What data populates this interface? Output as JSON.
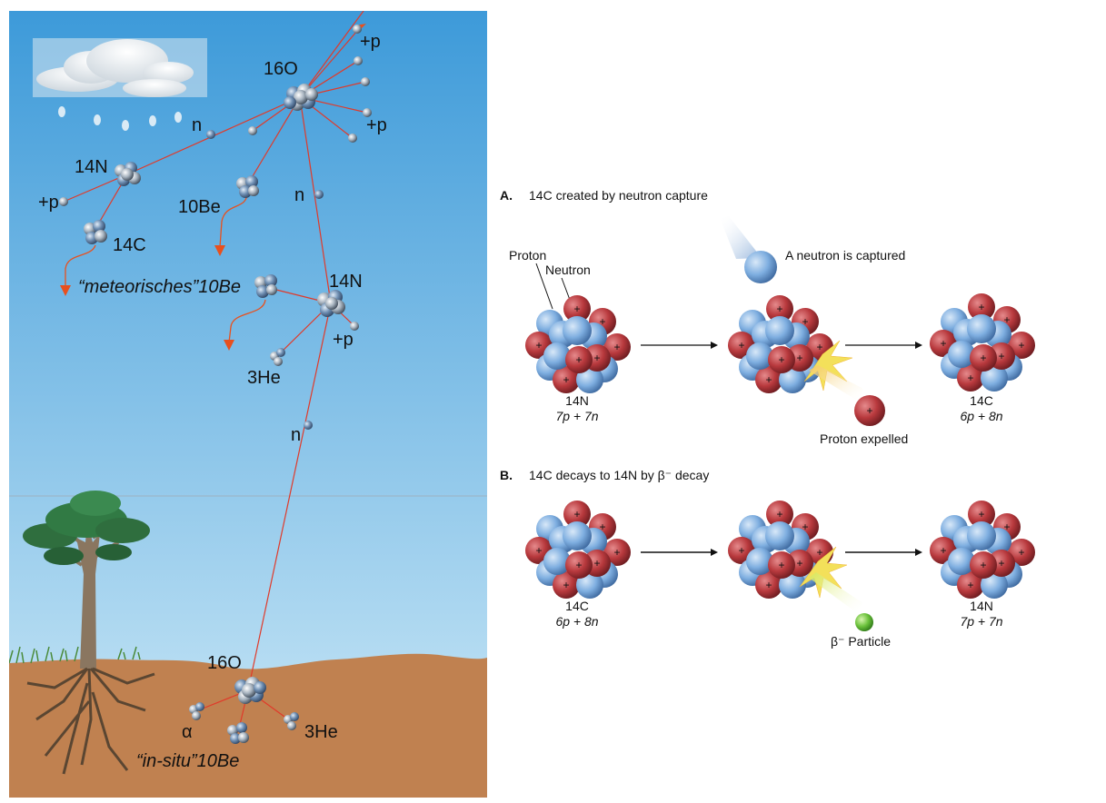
{
  "left_panel": {
    "labels": {
      "o16_top": "16O",
      "proton_top": "+p",
      "proton_right": "+p",
      "neutron_1": "n",
      "n14_top": "14N",
      "proton_left": "+p",
      "be10_atm": "10Be",
      "c14": "14C",
      "neutron_2": "n",
      "meteorisches": "“meteorisches”10Be",
      "n14_mid": "14N",
      "proton_mid": "+p",
      "he3_atm": "3He",
      "neutron_3": "n",
      "o16_ground": "16O",
      "alpha": "α",
      "he3_ground": "3He",
      "in_situ": "“in-situ”10Be"
    },
    "colors": {
      "sky_top": "#3d9ad9",
      "sky_bottom": "#cde9f7",
      "soil": "#c08150",
      "track": "#e03a2a",
      "arrow": "#e8501e"
    }
  },
  "panel_a": {
    "letter": "A.",
    "title": "14C created by neutron capture",
    "proton_label": "Proton",
    "neutron_label": "Neutron",
    "captured_label": "A neutron is captured",
    "expelled_label": "Proton expelled",
    "left_nucleus": {
      "symbol": "14N",
      "composition": "7p + 7n"
    },
    "right_nucleus": {
      "symbol": "14C",
      "composition": "6p + 8n"
    }
  },
  "panel_b": {
    "letter": "B.",
    "title": "14C decays to 14N by β⁻ decay",
    "beta_label": "β⁻ Particle",
    "left_nucleus": {
      "symbol": "14C",
      "composition": "6p + 8n"
    },
    "right_nucleus": {
      "symbol": "14N",
      "composition": "7p + 7n"
    }
  },
  "nucleus_colors": {
    "proton": "#b8393d",
    "neutron": "#7eaee0"
  }
}
